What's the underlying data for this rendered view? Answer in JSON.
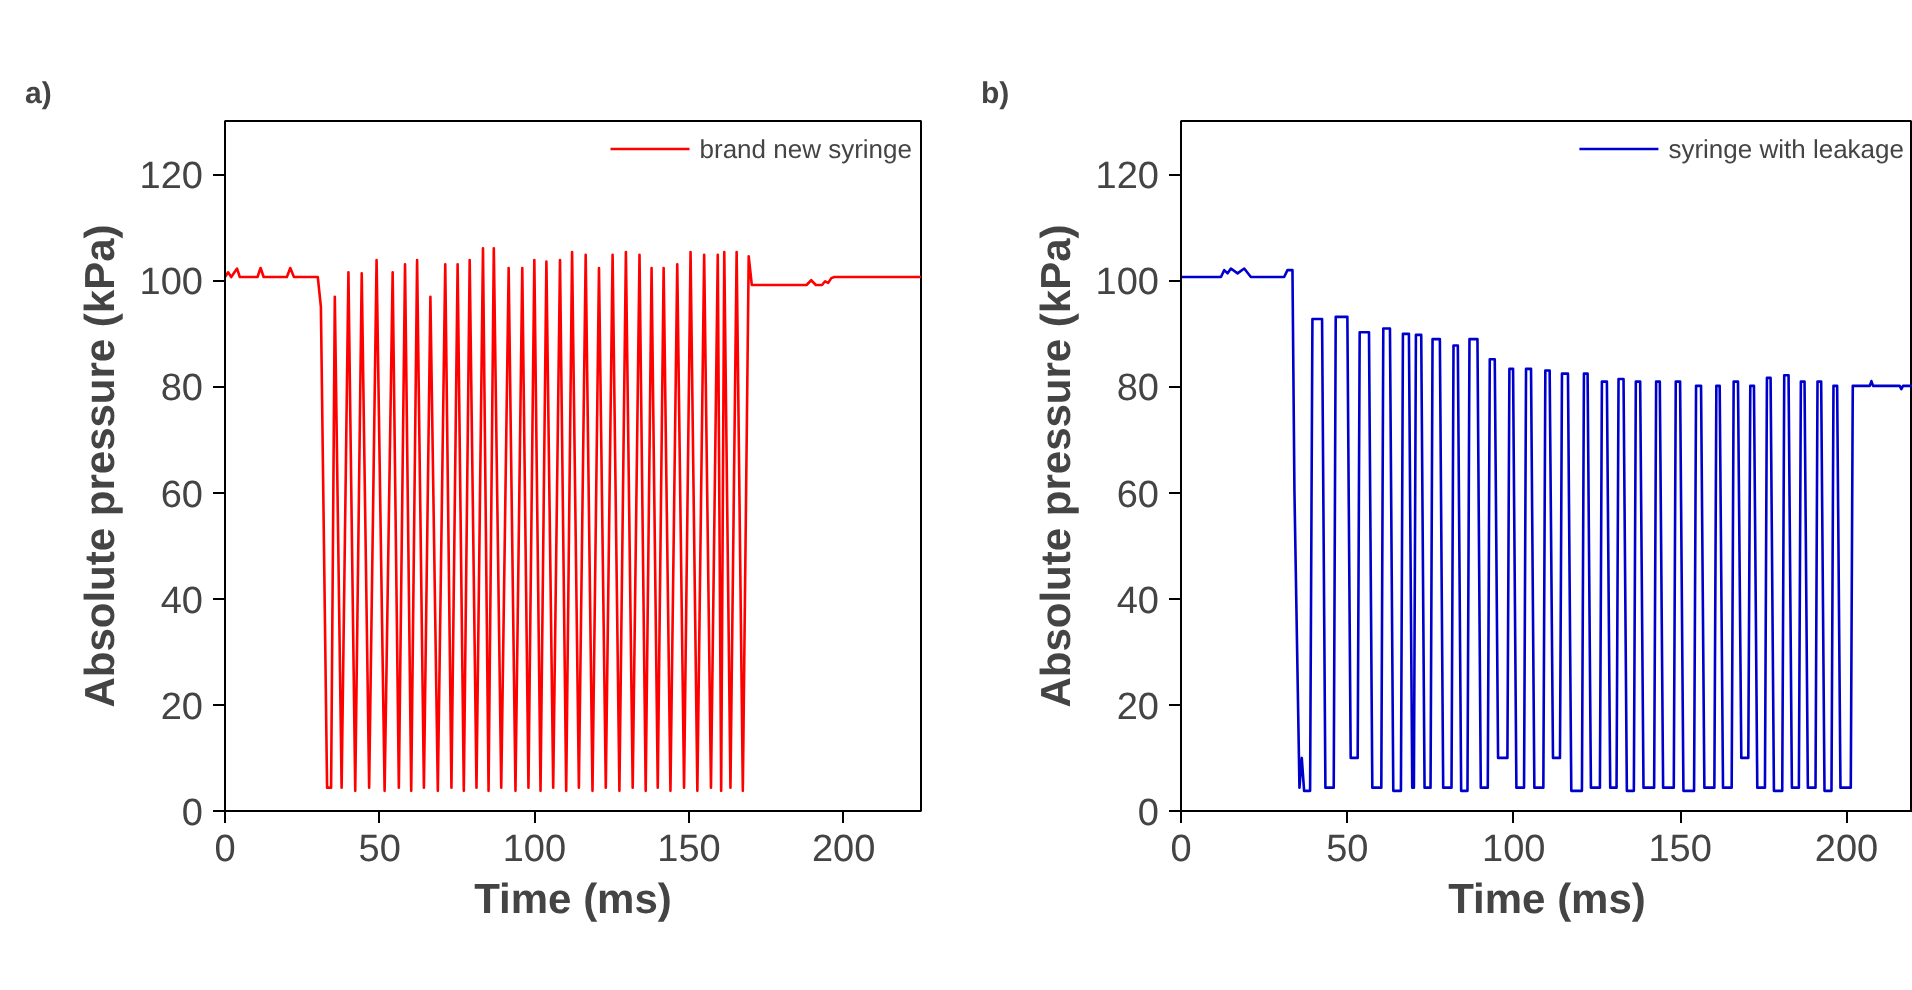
{
  "chart_data": [
    {
      "type": "line",
      "title": "a)",
      "xlabel": "Time (ms)",
      "ylabel": "Absolute pressure (kPa)",
      "xlim": [
        0,
        225
      ],
      "ylim": [
        0,
        130
      ],
      "xticks": [
        0,
        50,
        100,
        150,
        200
      ],
      "yticks": [
        0,
        20,
        40,
        60,
        80,
        100,
        120
      ],
      "grid": false,
      "legend": "top right",
      "series": [
        {
          "name": "brand new syringe",
          "color": "#ff0000",
          "x": [
            0,
            1,
            2,
            3.9,
            4.8,
            10.5,
            11.5,
            12.5,
            20,
            21.1,
            22.3,
            30,
            31,
            33,
            34.3,
            35.5,
            37.7,
            39.9,
            42.1,
            44.2,
            46.6,
            49.0,
            51.6,
            54.2,
            56.2,
            58.2,
            60.2,
            62.1,
            64.3,
            66.4,
            68.8,
            71.2,
            73.2,
            75.2,
            77.2,
            79.1,
            81.3,
            83.4,
            85.2,
            86.9,
            89.3,
            91.7,
            93.9,
            96.1,
            98.1,
            100.0,
            102.0,
            103.9,
            106.1,
            108.3,
            110.3,
            112.2,
            114.4,
            116.6,
            118.8,
            120.9,
            123.1,
            125.3,
            127.5,
            129.6,
            131.8,
            134.0,
            136.0,
            137.9,
            139.9,
            141.8,
            144.0,
            146.2,
            148.4,
            150.5,
            152.7,
            154.9,
            157.1,
            159.3,
            160.4,
            161.4,
            163.4,
            165.4,
            167.4,
            169.3,
            170.3,
            188,
            189.5,
            191,
            193,
            194,
            195,
            196,
            197,
            225
          ],
          "values": [
            100.6,
            101.5,
            100.6,
            102.2,
            100.6,
            100.6,
            102.3,
            100.6,
            100.6,
            102.3,
            100.6,
            100.6,
            95,
            4.4,
            4.4,
            96.9,
            4.4,
            101.5,
            3.8,
            101.3,
            4.4,
            103.8,
            3.8,
            101.5,
            4.4,
            103,
            3.8,
            103.8,
            4.4,
            96.9,
            3.8,
            103,
            4.4,
            103,
            3.8,
            103.8,
            4.4,
            106,
            3.8,
            106,
            4.4,
            102.3,
            3.8,
            102.3,
            4.4,
            103.8,
            3.8,
            103.5,
            4.4,
            103.8,
            3.8,
            105.3,
            4.4,
            104.8,
            3.8,
            102.3,
            4.4,
            104.8,
            3.8,
            105.3,
            4.4,
            104.8,
            3.8,
            102.3,
            4.4,
            102.3,
            3.8,
            103,
            4.4,
            105.3,
            3.8,
            104.8,
            4.4,
            104.8,
            3.8,
            105.3,
            4.4,
            105.3,
            3.8,
            104.5,
            99.1,
            99.1,
            100,
            99.1,
            99.1,
            99.8,
            99.5,
            100.4,
            100.6,
            100.6
          ]
        }
      ]
    },
    {
      "type": "line",
      "title": "b)",
      "xlabel": "Time (ms)",
      "ylabel": "Absolute pressure (kPa)",
      "xlim": [
        0,
        220
      ],
      "ylim": [
        0,
        130
      ],
      "xticks": [
        0,
        50,
        100,
        150,
        200
      ],
      "yticks": [
        0,
        20,
        40,
        60,
        80,
        100,
        120
      ],
      "grid": false,
      "legend": "top right",
      "series": [
        {
          "name": "syringe with leakage",
          "color": "#0000cc",
          "x": [
            0,
            12,
            13,
            14,
            15,
            17,
            19,
            21,
            31,
            32,
            33.5,
            34.1,
            35.6,
            36.3,
            37,
            38.8,
            39.5,
            42.4,
            43.4,
            45.9,
            46.5,
            50.0,
            51.0,
            53.1,
            53.7,
            56.5,
            57.5,
            60.2,
            60.8,
            62.8,
            63.8,
            66.1,
            66.7,
            68.5,
            69.5,
            70.0,
            70.6,
            72.2,
            73.2,
            75.0,
            75.6,
            77.8,
            78.8,
            81.3,
            81.9,
            83.2,
            84.2,
            86.1,
            86.7,
            89.1,
            90.1,
            92.2,
            92.8,
            94.3,
            95.3,
            98.1,
            98.7,
            99.8,
            100.8,
            103.1,
            103.7,
            105.2,
            106.2,
            108.9,
            109.5,
            110.8,
            111.8,
            113.9,
            114.5,
            116.3,
            117.3,
            120.5,
            121.1,
            122.2,
            123.2,
            125.9,
            126.5,
            128.0,
            129.0,
            130.9,
            131.5,
            133.0,
            134.0,
            136.1,
            136.7,
            138.0,
            139.0,
            142.2,
            142.8,
            143.9,
            144.9,
            148.1,
            148.7,
            150.0,
            151.0,
            154.2,
            154.8,
            156.3,
            157.3,
            160.3,
            160.9,
            161.9,
            162.9,
            165.5,
            166.1,
            167.4,
            168.4,
            170.5,
            171.1,
            172.2,
            173.2,
            175.5,
            176.1,
            177.2,
            178.2,
            180.7,
            181.3,
            182.6,
            183.6,
            185.7,
            186.3,
            187.4,
            188.4,
            190.7,
            191.3,
            192.4,
            193.4,
            195.5,
            196.1,
            197.2,
            198.2,
            201.3,
            201.9,
            207,
            207.5,
            208,
            216,
            216.5,
            217,
            220
          ],
          "values": [
            100.6,
            100.6,
            101.9,
            101.3,
            102.2,
            101.3,
            102.2,
            100.6,
            100.6,
            101.9,
            101.9,
            60,
            4.4,
            10,
            3.8,
            3.8,
            92.7,
            92.7,
            4.4,
            4.4,
            93.1,
            93.1,
            10,
            10,
            90.2,
            90.2,
            4.4,
            4.4,
            90.9,
            90.9,
            3.8,
            3.8,
            89.9,
            89.9,
            4.4,
            4.4,
            89.7,
            89.7,
            4.4,
            4.4,
            88.9,
            88.9,
            4.4,
            4.4,
            87.7,
            87.7,
            3.8,
            3.8,
            88.9,
            88.9,
            4.4,
            4.4,
            85.1,
            85.1,
            10,
            10,
            83.3,
            83.3,
            4.4,
            4.4,
            83.3,
            83.3,
            4.4,
            4.4,
            83.0,
            83.0,
            10,
            10,
            82.4,
            82.4,
            3.8,
            3.8,
            82.4,
            82.4,
            4.4,
            4.4,
            80.9,
            80.9,
            4.4,
            4.4,
            81.4,
            81.4,
            3.8,
            3.8,
            80.9,
            80.9,
            4.4,
            4.4,
            80.9,
            80.9,
            4.4,
            4.4,
            80.9,
            80.9,
            3.8,
            3.8,
            80.1,
            80.1,
            4.4,
            4.4,
            80.1,
            80.1,
            4.4,
            4.4,
            80.9,
            80.9,
            10,
            10,
            80.1,
            80.1,
            4.4,
            4.4,
            81.6,
            81.6,
            3.8,
            3.8,
            82.1,
            82.1,
            4.4,
            4.4,
            80.9,
            80.9,
            4.4,
            4.4,
            80.9,
            80.9,
            3.8,
            3.8,
            80.1,
            80.1,
            4.4,
            4.4,
            80.1,
            80.1,
            81,
            80.1,
            80.1,
            79.5,
            80.1,
            80.1
          ]
        }
      ]
    }
  ]
}
